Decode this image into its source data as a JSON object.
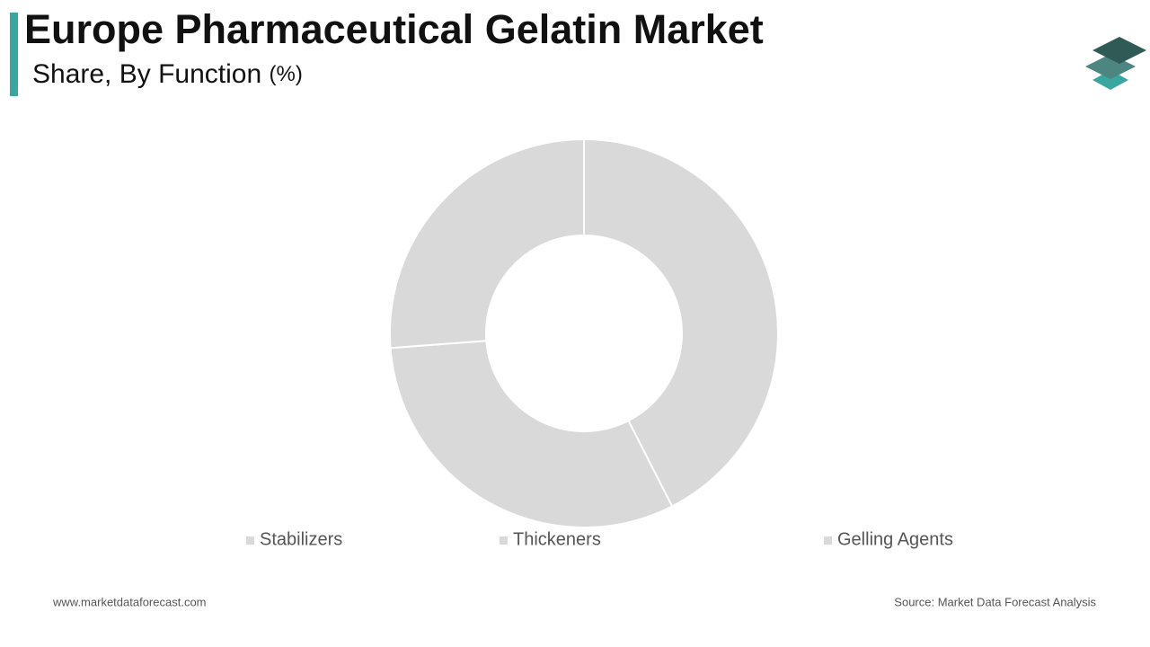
{
  "chart_data": {
    "type": "donut",
    "title": "Europe Pharmaceutical Gelatin Market",
    "subtitle": "Share, By Function",
    "unit": "(%)",
    "categories": [
      "Stabilizers",
      "Thickeners",
      "Gelling Agents"
    ],
    "values": [
      42.5,
      31.3,
      26.2
    ],
    "colors": [
      "#d9d9d9",
      "#d9d9d9",
      "#d9d9d9"
    ]
  },
  "footer": {
    "website": "www.marketdataforecast.com",
    "source": "Source: Market Data Forecast Analysis"
  }
}
